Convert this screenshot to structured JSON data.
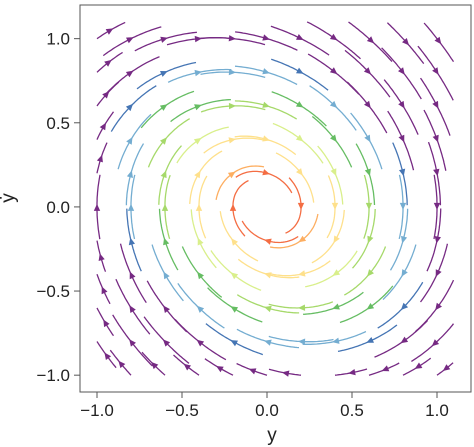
{
  "chart_data": {
    "type": "streamplot",
    "xlabel": "y",
    "ylabel": "ẏ",
    "xlim": [
      -1.1,
      1.2
    ],
    "ylim": [
      -1.1,
      1.2
    ],
    "xticks": [
      {
        "value": -1.0,
        "label": "−1.0"
      },
      {
        "value": -0.5,
        "label": "−0.5"
      },
      {
        "value": 0.0,
        "label": "0.0"
      },
      {
        "value": 0.5,
        "label": "0.5"
      },
      {
        "value": 1.0,
        "label": "1.0"
      }
    ],
    "yticks": [
      {
        "value": -1.0,
        "label": "−1.0"
      },
      {
        "value": -0.5,
        "label": "−0.5"
      },
      {
        "value": 0.0,
        "label": "0.0"
      },
      {
        "value": 0.5,
        "label": "0.5"
      },
      {
        "value": 1.0,
        "label": "1.0"
      }
    ],
    "vector_field": {
      "dx": "v",
      "dy": "-y - 0.3*v",
      "description_printed": false
    },
    "color_scale": "speed (red = slow, violet = fast)",
    "colors": [
      "#d7301f",
      "#f46d43",
      "#fdae61",
      "#fee08b",
      "#d9ef8b",
      "#a6d96a",
      "#66bd63",
      "#74add1",
      "#4575b4",
      "#762a83"
    ],
    "frame": true,
    "grid": false
  }
}
